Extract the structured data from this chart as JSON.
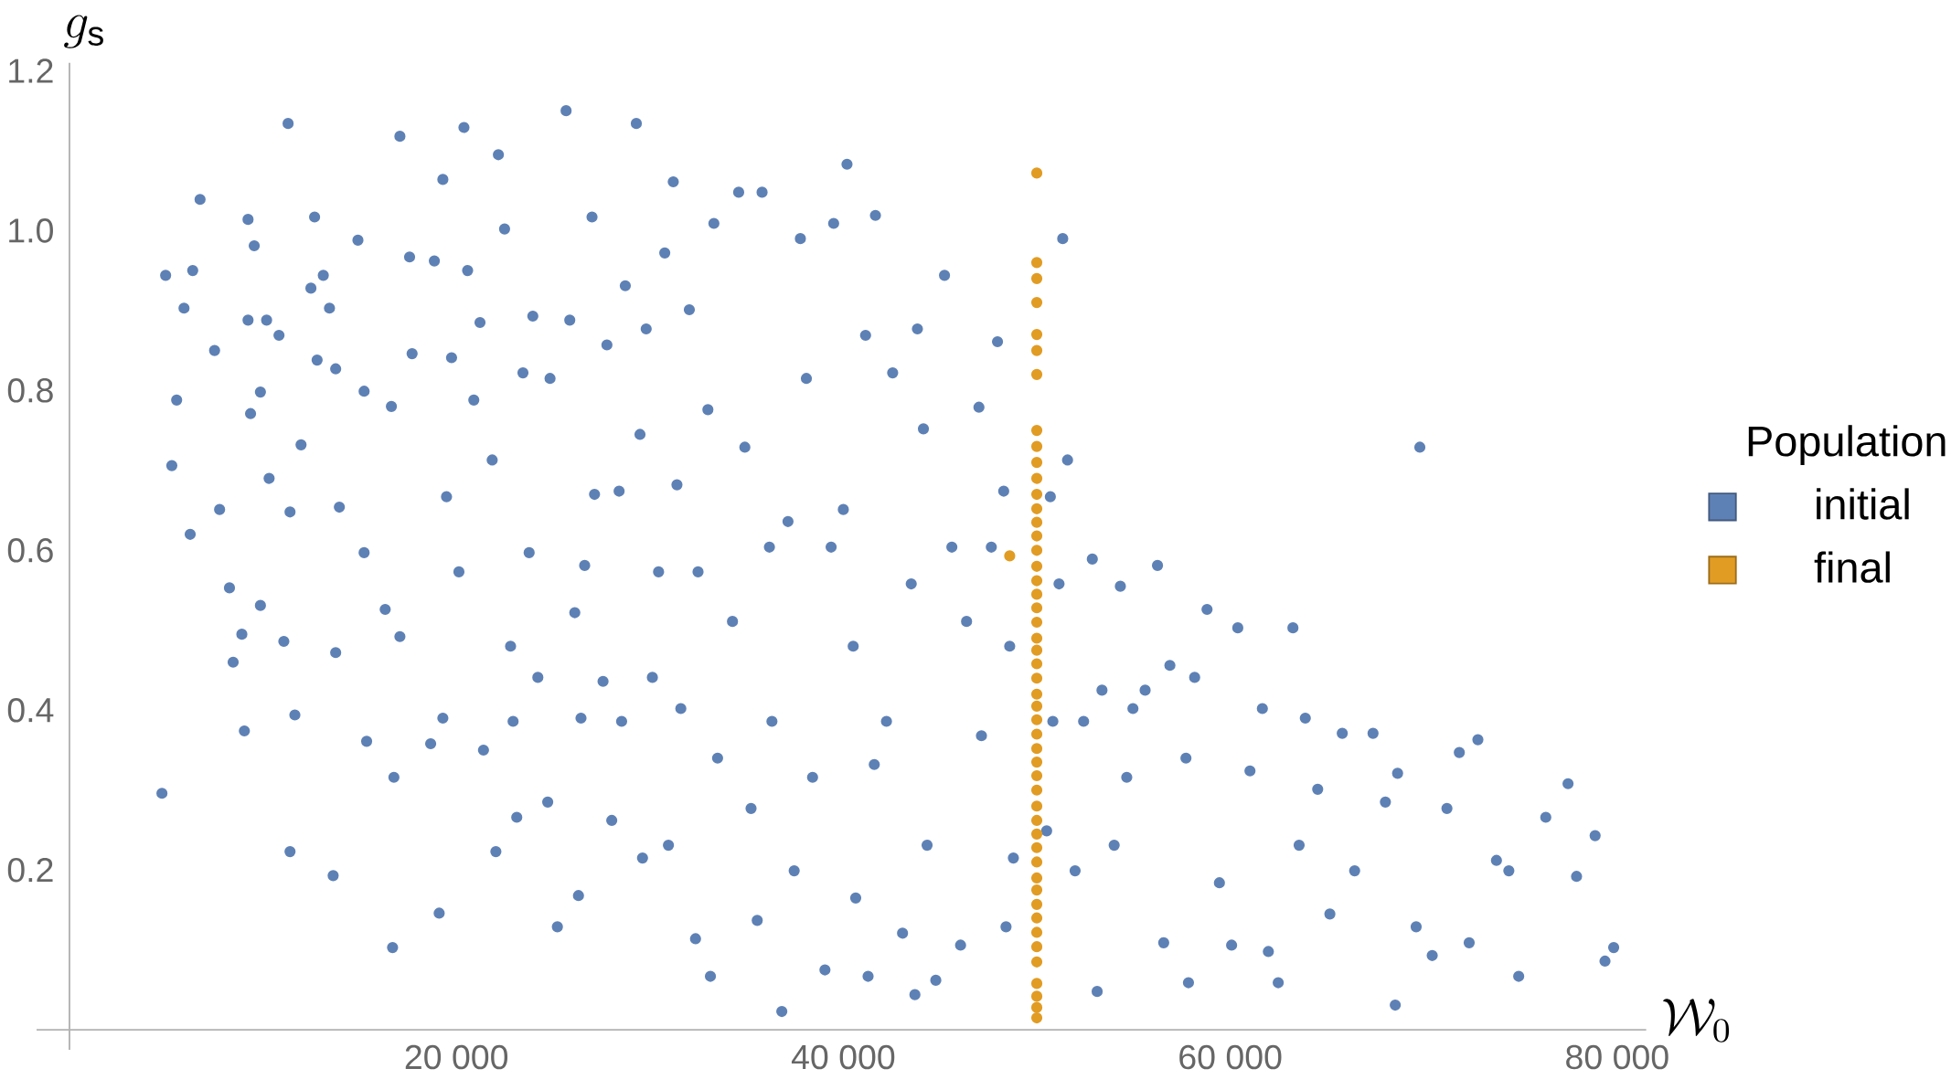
{
  "chart_data": {
    "type": "scatter",
    "xlabel": "\\mathcal{W}_0",
    "ylabel": "g_{\\mathrm{s}}",
    "legend_title": "Population",
    "legend": "right",
    "marker": "circle",
    "xlim": [
      -1700,
      81500
    ],
    "ylim": [
      -0.025,
      1.21
    ],
    "xticks": [
      {
        "value": 20000,
        "label": "20 000"
      },
      {
        "value": 40000,
        "label": "40 000"
      },
      {
        "value": 60000,
        "label": "60 000"
      },
      {
        "value": 80000,
        "label": "80 000"
      }
    ],
    "yticks": [
      0.2,
      0.4,
      0.6,
      0.8,
      {
        "value": 1,
        "label": "1.0"
      },
      1.2
    ],
    "series": [
      {
        "name": "initial",
        "color": "#5e81b5",
        "x": [
          4780,
          4970,
          5290,
          5540,
          5920,
          6240,
          6370,
          6750,
          7500,
          7760,
          8270,
          8460,
          8910,
          9040,
          9230,
          9230,
          9360,
          9550,
          9870,
          9870,
          10190,
          10320,
          10830,
          11080,
          11300,
          11400,
          11400,
          11650,
          11970,
          12480,
          12670,
          12800,
          13120,
          13440,
          13630,
          13760,
          13760,
          13950,
          14910,
          15230,
          15230,
          15360,
          16320,
          16640,
          16700,
          16770,
          17080,
          17080,
          17580,
          17710,
          18670,
          18860,
          19110,
          19300,
          19300,
          19490,
          19750,
          20130,
          20390,
          20580,
          20900,
          21220,
          21400,
          21850,
          22040,
          22170,
          22490,
          22800,
          22930,
          23120,
          23440,
          23760,
          23950,
          24210,
          24720,
          24840,
          25220,
          25670,
          25860,
          26120,
          26310,
          26440,
          26630,
          27010,
          27140,
          27580,
          27780,
          28030,
          28410,
          28540,
          28730,
          29300,
          29490,
          29620,
          29810,
          30130,
          30450,
          30770,
          30960,
          31210,
          31400,
          31600,
          32040,
          32360,
          32490,
          33000,
          33130,
          33310,
          33500,
          34270,
          34590,
          34910,
          35230,
          35550,
          35800,
          36180,
          36310,
          36820,
          37140,
          37460,
          37780,
          38090,
          38410,
          39050,
          39370,
          39500,
          40000,
          40190,
          40510,
          40640,
          41150,
          41280,
          41600,
          41660,
          42230,
          42550,
          43060,
          43510,
          43700,
          43830,
          44140,
          44330,
          44780,
          45230,
          45610,
          46060,
          46370,
          47010,
          47140,
          47650,
          47970,
          48290,
          48410,
          48600,
          48790,
          50510,
          50700,
          50830,
          51150,
          51340,
          51590,
          51980,
          52420,
          52870,
          53120,
          53370,
          54000,
          54320,
          54650,
          54970,
          55600,
          56240,
          56560,
          56880,
          57710,
          57840,
          58160,
          58800,
          59440,
          60070,
          60390,
          61020,
          61660,
          61970,
          62480,
          63240,
          63560,
          63880,
          64520,
          65150,
          65790,
          66430,
          67380,
          68020,
          68530,
          68650,
          69610,
          69800,
          70440,
          71200,
          71840,
          72350,
          72800,
          73760,
          74400,
          74910,
          76310,
          77460,
          77900,
          78860,
          79370,
          79820
        ],
        "values": [
          0.296,
          0.944,
          0.706,
          0.788,
          0.903,
          0.62,
          0.95,
          1.039,
          0.85,
          0.651,
          0.553,
          0.46,
          0.495,
          0.374,
          1.014,
          0.888,
          0.771,
          0.981,
          0.798,
          0.531,
          0.888,
          0.69,
          0.869,
          0.486,
          1.134,
          0.223,
          0.648,
          0.394,
          0.732,
          0.928,
          1.017,
          0.838,
          0.944,
          0.903,
          0.193,
          0.827,
          0.472,
          0.654,
          0.988,
          0.799,
          0.597,
          0.361,
          0.526,
          0.78,
          0.103,
          0.316,
          0.492,
          1.118,
          0.967,
          0.846,
          0.358,
          0.962,
          0.146,
          0.39,
          1.064,
          0.667,
          0.841,
          0.573,
          1.129,
          0.95,
          0.788,
          0.885,
          0.35,
          0.713,
          0.223,
          1.095,
          1.002,
          0.48,
          0.386,
          0.266,
          0.822,
          0.597,
          0.893,
          0.441,
          0.285,
          0.815,
          0.129,
          1.15,
          0.888,
          0.522,
          0.168,
          0.39,
          0.581,
          1.017,
          0.67,
          0.436,
          0.857,
          0.262,
          0.674,
          0.386,
          0.931,
          1.134,
          0.745,
          0.215,
          0.877,
          0.441,
          0.573,
          0.972,
          0.231,
          1.061,
          0.682,
          0.402,
          0.901,
          0.114,
          0.573,
          0.776,
          0.067,
          1.009,
          0.34,
          0.511,
          1.048,
          0.729,
          0.277,
          0.137,
          1.048,
          0.604,
          0.386,
          0.023,
          0.636,
          0.199,
          0.99,
          0.815,
          0.316,
          0.075,
          0.604,
          1.009,
          0.651,
          1.083,
          0.48,
          0.165,
          0.869,
          0.067,
          0.332,
          1.019,
          0.386,
          0.822,
          0.121,
          0.558,
          0.044,
          0.877,
          0.752,
          0.231,
          0.062,
          0.944,
          0.604,
          0.106,
          0.511,
          0.779,
          0.368,
          0.604,
          0.861,
          0.674,
          0.129,
          0.48,
          0.215,
          0.249,
          0.667,
          0.386,
          0.558,
          0.99,
          0.713,
          0.199,
          0.386,
          0.589,
          0.048,
          0.425,
          0.231,
          0.555,
          0.316,
          0.402,
          0.425,
          0.581,
          0.109,
          0.456,
          0.34,
          0.059,
          0.441,
          0.526,
          0.184,
          0.106,
          0.503,
          0.324,
          0.402,
          0.098,
          0.059,
          0.503,
          0.231,
          0.39,
          0.301,
          0.145,
          0.371,
          0.199,
          0.371,
          0.285,
          0.031,
          0.321,
          0.129,
          0.729,
          0.093,
          0.277,
          0.347,
          0.109,
          0.363,
          0.212,
          0.199,
          0.067,
          0.266,
          0.308,
          0.192,
          0.243,
          0.086,
          0.103
        ]
      },
      {
        "name": "final",
        "color": "#e19c24",
        "x": [
          50000,
          50000,
          50000,
          50000,
          50000,
          50000,
          50000,
          50000,
          50000,
          50000,
          50000,
          50000,
          50000,
          50000,
          50000,
          50000,
          50000,
          50000,
          50000,
          50000,
          50000,
          50000,
          50000,
          50000,
          50000,
          50000,
          50000,
          50000,
          50000,
          50000,
          50000,
          50000,
          50000,
          50000,
          50000,
          50000,
          50000,
          50000,
          50000,
          50000,
          50000,
          50000,
          50000,
          50000,
          50000,
          50000,
          50000,
          50000,
          50000,
          48600
        ],
        "values": [
          0.015,
          0.028,
          0.042,
          0.058,
          0.085,
          0.104,
          0.122,
          0.14,
          0.157,
          0.175,
          0.19,
          0.21,
          0.228,
          0.245,
          0.262,
          0.28,
          0.3,
          0.318,
          0.335,
          0.352,
          0.37,
          0.388,
          0.405,
          0.42,
          0.44,
          0.458,
          0.475,
          0.49,
          0.51,
          0.528,
          0.545,
          0.562,
          0.58,
          0.6,
          0.618,
          0.635,
          0.652,
          0.67,
          0.69,
          0.71,
          0.73,
          0.75,
          0.82,
          0.85,
          0.87,
          0.91,
          0.94,
          0.96,
          1.072,
          0.593
        ]
      }
    ]
  }
}
